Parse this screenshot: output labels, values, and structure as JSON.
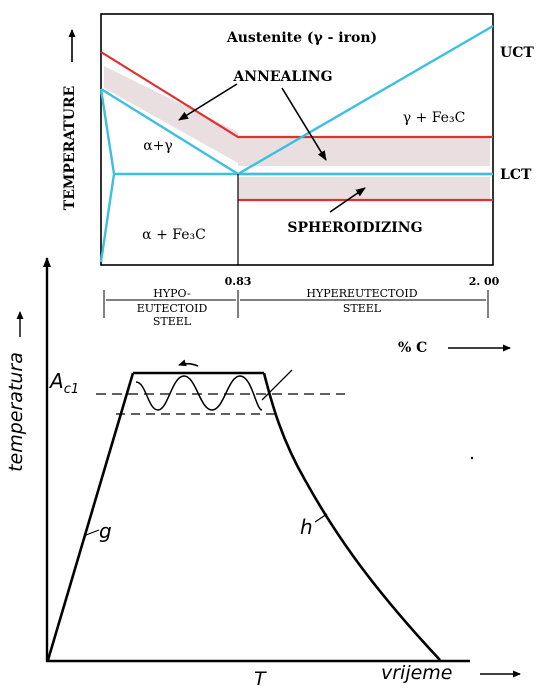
{
  "phase_diagram": {
    "y_axis_label": "TEMPERATURE",
    "austenite_label": "Austenite (γ - iron)",
    "annealing_label": "ANNEALING",
    "spheroidizing_label": "SPHEROIDIZING",
    "alpha_gamma_label": "α+γ",
    "alpha_fe3c_label": "α + Fe₃C",
    "gamma_fe3c_label": "γ + Fe₃C",
    "uct_label": "UCT",
    "lct_label": "LCT",
    "tick_eutectoid": "0.83",
    "tick_max": "2. 00",
    "hypo_label_line1": "HYPO-",
    "hypo_label_line2": "EUTECTOID",
    "hypo_label_line3": "STEEL",
    "hyper_label_line1": "HYPEREUTECTOID",
    "hyper_label_line2": "STEEL",
    "x_axis_label": "% C",
    "colors": {
      "critical_line": "#3cbfe0",
      "annealing_line": "#e03030",
      "annealing_band": "#e9dfe0"
    }
  },
  "heat_cycle": {
    "y_axis_label": "temperatura",
    "ac1_label": "A",
    "ac1_subscript": "c1",
    "heating_label": "g",
    "cooling_label": "h",
    "time_marker": "T",
    "x_axis_label": "vrijeme"
  }
}
